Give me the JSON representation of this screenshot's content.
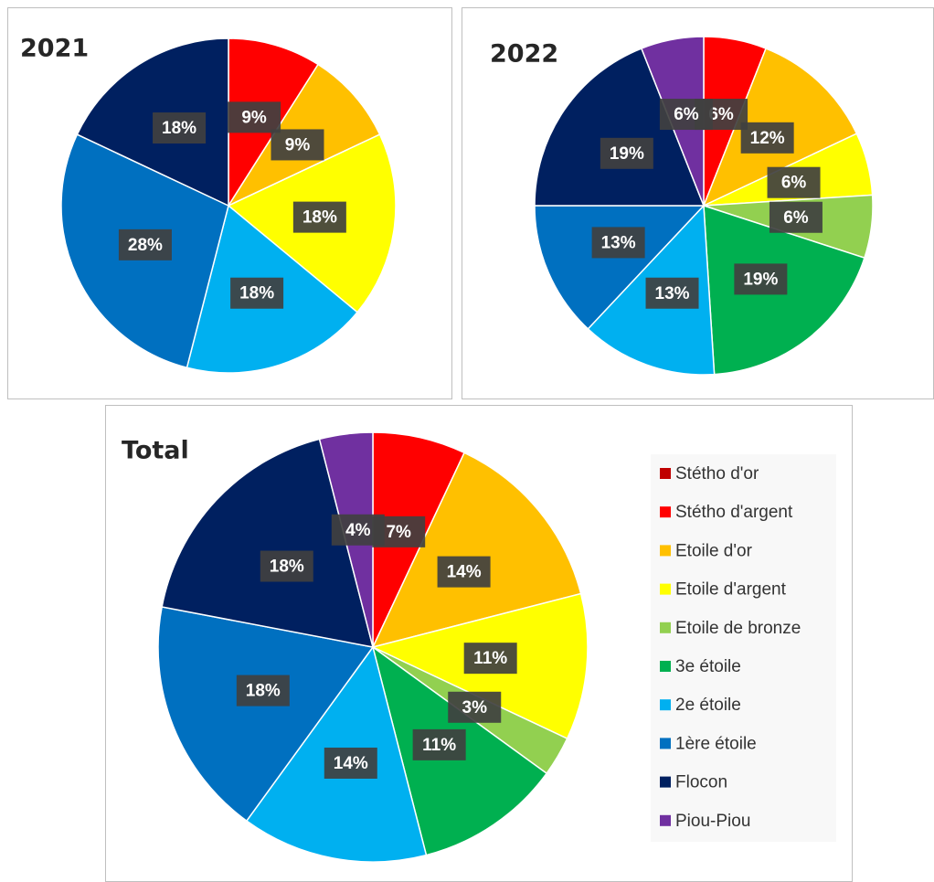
{
  "chart_data": [
    {
      "type": "pie",
      "title": "2021",
      "categories": [
        "Stétho d'argent",
        "Etoile d'or",
        "Etoile d'argent",
        "2e étoile",
        "1ère étoile",
        "Flocon"
      ],
      "values": [
        9,
        9,
        18,
        18,
        28,
        18
      ],
      "value_labels": [
        "9%",
        "9%",
        "18%",
        "18%",
        "28%",
        "18%"
      ],
      "colors": [
        "#FF0000",
        "#FFC000",
        "#FFFF00",
        "#00B0F0",
        "#0070C0",
        "#002060"
      ],
      "legend": false
    },
    {
      "type": "pie",
      "title": "2022",
      "categories": [
        "Stétho d'argent",
        "Etoile d'or",
        "Etoile d'argent",
        "Etoile de bronze",
        "3e étoile",
        "2e étoile",
        "1ère étoile",
        "Flocon",
        "Piou-Piou"
      ],
      "values": [
        6,
        12,
        6,
        6,
        19,
        13,
        13,
        19,
        6
      ],
      "value_labels": [
        "6%",
        "12%",
        "6%",
        "6%",
        "19%",
        "13%",
        "13%",
        "19%",
        "6%"
      ],
      "colors": [
        "#FF0000",
        "#FFC000",
        "#FFFF00",
        "#92D050",
        "#00B050",
        "#00B0F0",
        "#0070C0",
        "#002060",
        "#7030A0"
      ],
      "legend": false
    },
    {
      "type": "pie",
      "title": "Total",
      "categories": [
        "Stétho d'or",
        "Stétho d'argent",
        "Etoile d'or",
        "Etoile d'argent",
        "Etoile de bronze",
        "3e étoile",
        "2e étoile",
        "1ère étoile",
        "Flocon",
        "Piou-Piou"
      ],
      "values": [
        0,
        7,
        14,
        11,
        3,
        11,
        14,
        18,
        18,
        4
      ],
      "value_labels": [
        null,
        "7%",
        "14%",
        "11%",
        "3%",
        "11%",
        "14%",
        "18%",
        "18%",
        "4%"
      ],
      "colors": [
        "#C00000",
        "#FF0000",
        "#FFC000",
        "#FFFF00",
        "#92D050",
        "#00B050",
        "#00B0F0",
        "#0070C0",
        "#002060",
        "#7030A0"
      ],
      "legend": "right"
    }
  ]
}
